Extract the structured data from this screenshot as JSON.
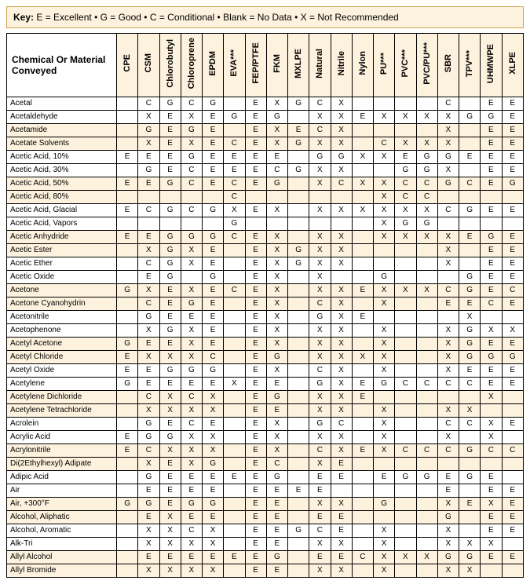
{
  "key": {
    "label": "Key:",
    "items": [
      "E = Excellent",
      "G = Good",
      "C = Conditional",
      "Blank = No Data",
      "X = Not Recommended"
    ],
    "separator": "  •  "
  },
  "table": {
    "row_header_label": "Chemical Or Material Conveyed",
    "columns": [
      "CPE",
      "CSM",
      "Chlorobutyl",
      "Chloroprene",
      "EPDM",
      "EVA***",
      "FEP/PTFE",
      "FKM",
      "MXLPE",
      "Natural",
      "Nitrile",
      "Nylon",
      "PU***",
      "PVC***",
      "PVC/PU***",
      "SBR",
      "TPV***",
      "UHMWPE",
      "XLPE"
    ],
    "rows": [
      {
        "chem": "Acetal",
        "r": [
          "",
          "C",
          "G",
          "C",
          "G",
          "",
          "E",
          "X",
          "G",
          "C",
          "X",
          "",
          "",
          "",
          "",
          "C",
          "",
          "E",
          "E"
        ]
      },
      {
        "chem": "Acetaldehyde",
        "r": [
          "",
          "X",
          "E",
          "X",
          "E",
          "G",
          "E",
          "G",
          "",
          "X",
          "X",
          "E",
          "X",
          "X",
          "X",
          "X",
          "G",
          "G",
          "E"
        ]
      },
      {
        "chem": "Acetamide",
        "r": [
          "",
          "G",
          "E",
          "G",
          "E",
          "",
          "E",
          "X",
          "E",
          "C",
          "X",
          "",
          "",
          "",
          "",
          "X",
          "",
          "E",
          "E"
        ]
      },
      {
        "chem": "Acetate Solvents",
        "r": [
          "",
          "X",
          "E",
          "X",
          "E",
          "C",
          "E",
          "X",
          "G",
          "X",
          "X",
          "",
          "C",
          "X",
          "X",
          "X",
          "",
          "E",
          "E"
        ]
      },
      {
        "chem": "Acetic Acid, 10%",
        "r": [
          "E",
          "E",
          "E",
          "G",
          "E",
          "E",
          "E",
          "E",
          "",
          "G",
          "G",
          "X",
          "X",
          "E",
          "G",
          "G",
          "E",
          "E",
          "E"
        ]
      },
      {
        "chem": "Acetic Acid, 30%",
        "r": [
          "",
          "G",
          "E",
          "C",
          "E",
          "E",
          "E",
          "C",
          "G",
          "X",
          "X",
          "",
          "",
          "G",
          "G",
          "X",
          "",
          "E",
          "E"
        ]
      },
      {
        "chem": "Acetic Acid, 50%",
        "r": [
          "E",
          "E",
          "G",
          "C",
          "E",
          "C",
          "E",
          "G",
          "",
          "X",
          "C",
          "X",
          "X",
          "C",
          "C",
          "G",
          "C",
          "E",
          "G"
        ]
      },
      {
        "chem": "Acetic Acid, 80%",
        "r": [
          "",
          "",
          "",
          "",
          "",
          "C",
          "",
          "",
          "",
          "",
          "",
          "",
          "X",
          "C",
          "C",
          "",
          "",
          "",
          ""
        ]
      },
      {
        "chem": "Acetic Acid, Glacial",
        "r": [
          "E",
          "C",
          "G",
          "C",
          "G",
          "X",
          "E",
          "X",
          "",
          "X",
          "X",
          "X",
          "X",
          "X",
          "X",
          "C",
          "G",
          "E",
          "E"
        ]
      },
      {
        "chem": "Acetic Acid, Vapors",
        "r": [
          "",
          "",
          "",
          "",
          "",
          "G",
          "",
          "",
          "",
          "",
          "",
          "",
          "X",
          "G",
          "G",
          "",
          "",
          "",
          ""
        ]
      },
      {
        "chem": "Acetic Anhydride",
        "r": [
          "E",
          "E",
          "G",
          "G",
          "G",
          "C",
          "E",
          "X",
          "",
          "X",
          "X",
          "",
          "X",
          "X",
          "X",
          "X",
          "E",
          "G",
          "E"
        ]
      },
      {
        "chem": "Acetic Ester",
        "r": [
          "",
          "X",
          "G",
          "X",
          "E",
          "",
          "E",
          "X",
          "G",
          "X",
          "X",
          "",
          "",
          "",
          "",
          "X",
          "",
          "E",
          "E"
        ]
      },
      {
        "chem": "Acetic Ether",
        "r": [
          "",
          "C",
          "G",
          "X",
          "E",
          "",
          "E",
          "X",
          "G",
          "X",
          "X",
          "",
          "",
          "",
          "",
          "X",
          "",
          "E",
          "E"
        ]
      },
      {
        "chem": "Acetic Oxide",
        "r": [
          "",
          "E",
          "G",
          "",
          "G",
          "",
          "E",
          "X",
          "",
          "X",
          "",
          "",
          "G",
          "",
          "",
          "",
          "G",
          "E",
          "E"
        ]
      },
      {
        "chem": "Acetone",
        "r": [
          "G",
          "X",
          "E",
          "X",
          "E",
          "C",
          "E",
          "X",
          "",
          "X",
          "X",
          "E",
          "X",
          "X",
          "X",
          "C",
          "G",
          "E",
          "C"
        ]
      },
      {
        "chem": "Acetone Cyanohydrin",
        "r": [
          "",
          "C",
          "E",
          "G",
          "E",
          "",
          "E",
          "X",
          "",
          "C",
          "X",
          "",
          "X",
          "",
          "",
          "E",
          "E",
          "C",
          "E"
        ]
      },
      {
        "chem": "Acetonitrile",
        "r": [
          "",
          "G",
          "E",
          "E",
          "E",
          "",
          "E",
          "X",
          "",
          "G",
          "X",
          "E",
          "",
          "",
          "",
          "",
          "X",
          "",
          ""
        ]
      },
      {
        "chem": "Acetophenone",
        "r": [
          "",
          "X",
          "G",
          "X",
          "E",
          "",
          "E",
          "X",
          "",
          "X",
          "X",
          "",
          "X",
          "",
          "",
          "X",
          "G",
          "X",
          "X"
        ]
      },
      {
        "chem": "Acetyl Acetone",
        "r": [
          "G",
          "E",
          "E",
          "X",
          "E",
          "",
          "E",
          "X",
          "",
          "X",
          "X",
          "",
          "X",
          "",
          "",
          "X",
          "G",
          "E",
          "E"
        ]
      },
      {
        "chem": "Acetyl Chloride",
        "r": [
          "E",
          "X",
          "X",
          "X",
          "C",
          "",
          "E",
          "G",
          "",
          "X",
          "X",
          "X",
          "X",
          "",
          "",
          "X",
          "G",
          "G",
          "G"
        ]
      },
      {
        "chem": "Acetyl Oxide",
        "r": [
          "E",
          "E",
          "G",
          "G",
          "G",
          "",
          "E",
          "X",
          "",
          "C",
          "X",
          "",
          "X",
          "",
          "",
          "X",
          "E",
          "E",
          "E"
        ]
      },
      {
        "chem": "Acetylene",
        "r": [
          "G",
          "E",
          "E",
          "E",
          "E",
          "X",
          "E",
          "E",
          "",
          "G",
          "X",
          "E",
          "G",
          "C",
          "C",
          "C",
          "C",
          "E",
          "E"
        ]
      },
      {
        "chem": "Acetylene Dichloride",
        "r": [
          "",
          "C",
          "X",
          "C",
          "X",
          "",
          "E",
          "G",
          "",
          "X",
          "X",
          "E",
          "",
          "",
          "",
          "",
          "",
          "X",
          ""
        ]
      },
      {
        "chem": "Acetylene Tetrachloride",
        "r": [
          "",
          "X",
          "X",
          "X",
          "X",
          "",
          "E",
          "E",
          "",
          "X",
          "X",
          "",
          "X",
          "",
          "",
          "X",
          "X",
          "",
          ""
        ]
      },
      {
        "chem": "Acrolein",
        "r": [
          "",
          "G",
          "E",
          "C",
          "E",
          "",
          "E",
          "X",
          "",
          "G",
          "C",
          "",
          "X",
          "",
          "",
          "C",
          "C",
          "X",
          "E"
        ]
      },
      {
        "chem": "Acrylic Acid",
        "r": [
          "E",
          "G",
          "G",
          "X",
          "X",
          "",
          "E",
          "X",
          "",
          "X",
          "X",
          "",
          "X",
          "",
          "",
          "X",
          "",
          "X",
          ""
        ]
      },
      {
        "chem": "Acrylonitrile",
        "r": [
          "E",
          "C",
          "X",
          "X",
          "X",
          "",
          "E",
          "X",
          "",
          "C",
          "X",
          "E",
          "X",
          "C",
          "C",
          "C",
          "G",
          "C",
          "C"
        ]
      },
      {
        "chem": "Di(2Ethylhexyl) Adipate",
        "r": [
          "",
          "X",
          "E",
          "X",
          "G",
          "",
          "E",
          "C",
          "",
          "X",
          "E",
          "",
          "",
          "",
          "",
          "",
          "",
          "",
          ""
        ]
      },
      {
        "chem": "Adipic Acid",
        "r": [
          "",
          "G",
          "E",
          "E",
          "E",
          "E",
          "E",
          "G",
          "",
          "E",
          "E",
          "",
          "E",
          "G",
          "G",
          "E",
          "G",
          "E",
          ""
        ]
      },
      {
        "chem": "Air",
        "r": [
          "",
          "E",
          "E",
          "E",
          "E",
          "",
          "E",
          "E",
          "E",
          "E",
          "",
          "",
          "",
          "",
          "",
          "E",
          "",
          "E",
          "E"
        ]
      },
      {
        "chem": "Air, +300°F",
        "r": [
          "G",
          "G",
          "E",
          "G",
          "G",
          "",
          "E",
          "E",
          "",
          "X",
          "X",
          "",
          "G",
          "",
          "",
          "X",
          "E",
          "X",
          "E"
        ]
      },
      {
        "chem": "Alcohol, Aliphatic",
        "r": [
          "",
          "E",
          "X",
          "E",
          "E",
          "",
          "E",
          "E",
          "",
          "E",
          "E",
          "",
          "",
          "",
          "",
          "G",
          "",
          "E",
          "E"
        ]
      },
      {
        "chem": "Alcohol, Aromatic",
        "r": [
          "",
          "X",
          "X",
          "C",
          "X",
          "",
          "E",
          "E",
          "G",
          "C",
          "E",
          "",
          "X",
          "",
          "",
          "X",
          "",
          "E",
          "E"
        ]
      },
      {
        "chem": "Alk-Tri",
        "r": [
          "",
          "X",
          "X",
          "X",
          "X",
          "",
          "E",
          "E",
          "",
          "X",
          "X",
          "",
          "X",
          "",
          "",
          "X",
          "X",
          "X",
          ""
        ]
      },
      {
        "chem": "Allyl Alcohol",
        "r": [
          "",
          "E",
          "E",
          "E",
          "E",
          "E",
          "E",
          "G",
          "",
          "E",
          "E",
          "C",
          "X",
          "X",
          "X",
          "G",
          "G",
          "E",
          "E"
        ]
      },
      {
        "chem": "Allyl Bromide",
        "r": [
          "",
          "X",
          "X",
          "X",
          "X",
          "",
          "E",
          "E",
          "",
          "X",
          "X",
          "",
          "X",
          "",
          "",
          "X",
          "X",
          "",
          ""
        ]
      }
    ],
    "band_color": "#fdf2dd"
  }
}
